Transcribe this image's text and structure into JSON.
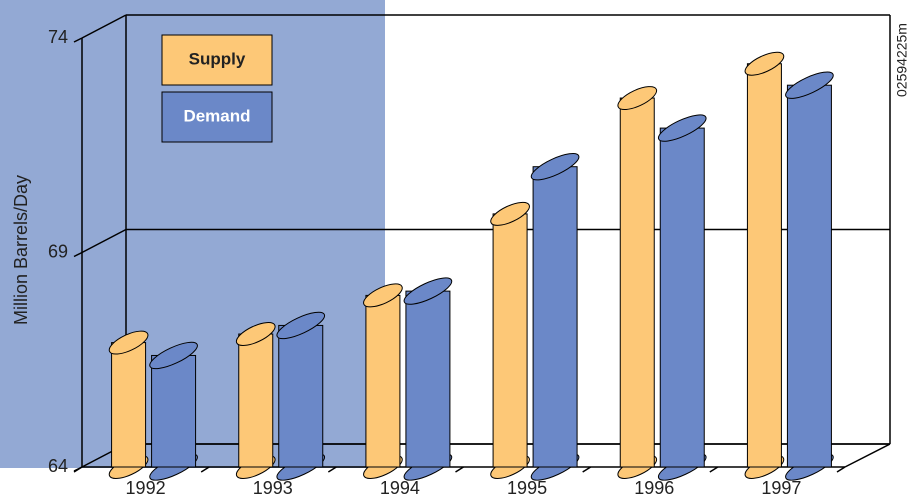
{
  "chart_data": {
    "type": "bar",
    "y_label": "Million Barrels/Day",
    "annotation": "02594225m",
    "categories": [
      "1992",
      "1993",
      "1994",
      "1995",
      "1996",
      "1997"
    ],
    "series": [
      {
        "name": "Supply",
        "color": "#fdc877",
        "values": [
          66.9,
          67.1,
          68.0,
          69.9,
          72.6,
          73.4
        ]
      },
      {
        "name": "Demand",
        "color": "#6b88c8",
        "values": [
          66.6,
          67.3,
          68.1,
          71.0,
          71.9,
          72.9
        ]
      }
    ],
    "ylim": [
      64,
      74
    ],
    "yticks": [
      64,
      69,
      74
    ],
    "grid": true
  }
}
